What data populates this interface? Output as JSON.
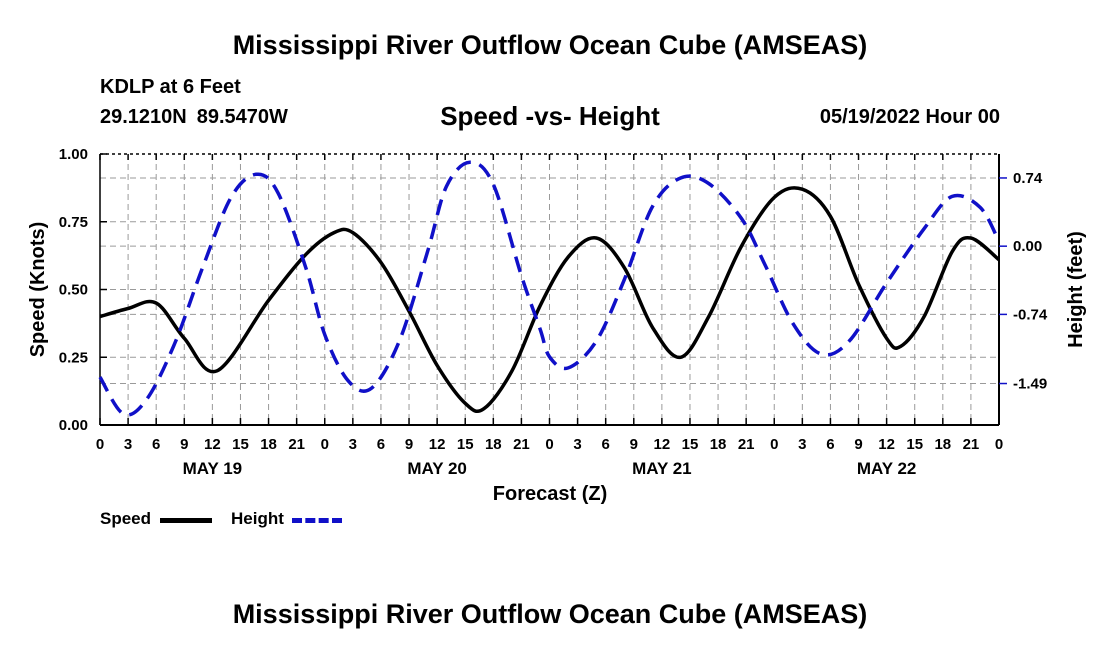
{
  "header": {
    "title": "Mississippi River Outflow Ocean Cube (AMSEAS)",
    "station": "KDLP at 6 Feet",
    "lat": "29.1210N",
    "lon": "89.5470W",
    "subtitle": "Speed -vs- Height",
    "datetime": "05/19/2022 Hour 00"
  },
  "footer": {
    "title": "Mississippi River Outflow Ocean Cube (AMSEAS)"
  },
  "legend": {
    "speed_label": "Speed",
    "height_label": "Height"
  },
  "colors": {
    "speed": "#000000",
    "height": "#1010c8",
    "grid": "#9a9a9a"
  },
  "chart_data": {
    "type": "line",
    "title": "Speed -vs- Height",
    "xlabel": "Forecast (Z)",
    "ylabel": "Speed (Knots)",
    "y2label": "Height (feet)",
    "x_range_hours": [
      0,
      96
    ],
    "ylim": [
      0,
      1.0
    ],
    "y2lim": [
      -1.94,
      1.0
    ],
    "y_ticks": [
      0.0,
      0.25,
      0.5,
      0.75,
      1.0
    ],
    "y_tick_labels": [
      "0.00",
      "0.25",
      "0.50",
      "0.75",
      "1.00"
    ],
    "y2_ticks": [
      -1.49,
      -0.74,
      0.0,
      0.74
    ],
    "y2_tick_labels": [
      "-1.49",
      "-0.74",
      "0.00",
      "0.74"
    ],
    "x_ticks_hours": [
      0,
      3,
      6,
      9,
      12,
      15,
      18,
      21,
      24,
      27,
      30,
      33,
      36,
      39,
      42,
      45,
      48,
      51,
      54,
      57,
      60,
      63,
      66,
      69,
      72,
      75,
      78,
      81,
      84,
      87,
      90,
      93,
      96
    ],
    "x_tick_labels": [
      "0",
      "3",
      "6",
      "9",
      "12",
      "15",
      "18",
      "21",
      "0",
      "3",
      "6",
      "9",
      "12",
      "15",
      "18",
      "21",
      "0",
      "3",
      "6",
      "9",
      "12",
      "15",
      "18",
      "21",
      "0",
      "3",
      "6",
      "9",
      "12",
      "15",
      "18",
      "21",
      "0"
    ],
    "day_labels": [
      {
        "hour": 12,
        "label": "MAY 19"
      },
      {
        "hour": 36,
        "label": "MAY 20"
      },
      {
        "hour": 60,
        "label": "MAY 21"
      },
      {
        "hour": 84,
        "label": "MAY 22"
      }
    ],
    "grid": true,
    "series": [
      {
        "name": "Speed",
        "axis": "left",
        "style": "solid",
        "x": [
          0,
          3,
          6,
          9,
          12.5,
          18,
          22,
          25,
          27,
          30,
          33,
          36,
          39,
          41,
          44,
          47,
          50,
          53,
          56,
          59,
          62,
          65,
          68.5,
          72,
          75,
          78,
          81,
          84,
          85.5,
          88,
          91,
          93,
          96
        ],
        "y": [
          0.4,
          0.43,
          0.45,
          0.32,
          0.2,
          0.46,
          0.63,
          0.71,
          0.71,
          0.6,
          0.42,
          0.22,
          0.08,
          0.06,
          0.2,
          0.44,
          0.62,
          0.69,
          0.58,
          0.36,
          0.25,
          0.4,
          0.66,
          0.84,
          0.87,
          0.77,
          0.52,
          0.32,
          0.29,
          0.4,
          0.64,
          0.69,
          0.61
        ]
      },
      {
        "name": "Height",
        "axis": "right",
        "style": "dashed",
        "x": [
          0,
          2.5,
          5,
          8,
          11,
          14,
          16.7,
          19,
          22,
          24,
          26.5,
          29,
          32,
          35,
          37,
          39.5,
          42,
          45,
          47,
          48,
          50,
          53,
          56,
          59,
          62,
          65,
          68.5,
          71,
          74,
          77,
          80,
          84,
          88,
          91,
          94,
          96
        ],
        "y": [
          -1.42,
          -1.82,
          -1.66,
          -1.05,
          -0.22,
          0.53,
          0.78,
          0.58,
          -0.24,
          -0.96,
          -1.46,
          -1.54,
          -1.02,
          -0.05,
          0.65,
          0.91,
          0.67,
          -0.32,
          -0.9,
          -1.2,
          -1.32,
          -1.03,
          -0.36,
          0.43,
          0.74,
          0.68,
          0.3,
          -0.2,
          -0.84,
          -1.17,
          -1.03,
          -0.4,
          0.19,
          0.54,
          0.42,
          0.05
        ]
      }
    ]
  }
}
